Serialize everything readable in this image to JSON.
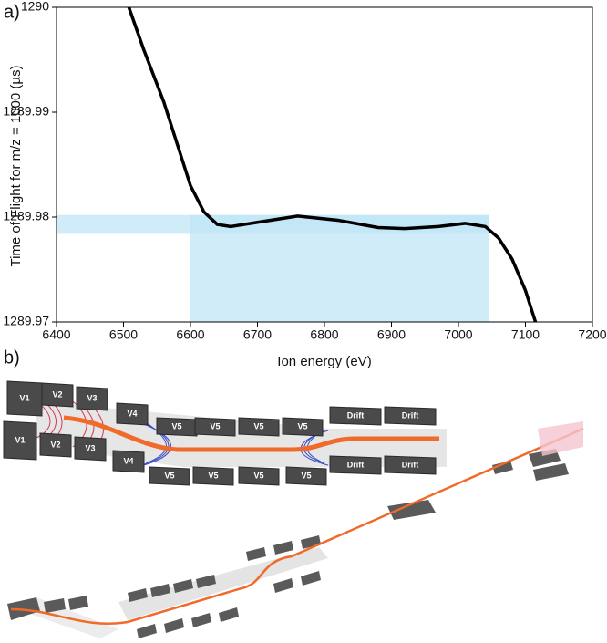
{
  "chart_data": {
    "type": "line",
    "panel_label": "a)",
    "x_label": "Ion energy (eV)",
    "y_label": "Time of Flight for m/z = 1000  (µs)",
    "x": [
      6508,
      6530,
      6560,
      6580,
      6600,
      6620,
      6640,
      6660,
      6700,
      6760,
      6820,
      6880,
      6920,
      6970,
      7010,
      7040,
      7060,
      7080,
      7100,
      7115
    ],
    "series": [
      {
        "color": "#000000",
        "values": [
          1290.0,
          1289.996,
          1289.991,
          1289.987,
          1289.983,
          1289.9805,
          1289.9793,
          1289.9791,
          1289.9795,
          1289.9801,
          1289.9797,
          1289.979,
          1289.9789,
          1289.9791,
          1289.9794,
          1289.9791,
          1289.978,
          1289.976,
          1289.973,
          1289.97
        ]
      }
    ],
    "shaded_regions": [
      {
        "xlim": [
          6600,
          7045
        ],
        "ylim": [
          1289.97,
          1289.9802
        ],
        "color": "#bfe6f5"
      },
      {
        "xlim": [
          6400,
          7045
        ],
        "ylim": [
          1289.9784,
          1289.9802
        ],
        "color": "#bfe6f5"
      }
    ],
    "xlim": [
      6400,
      7200
    ],
    "xticks": [
      6400,
      6500,
      6600,
      6700,
      6800,
      6900,
      7000,
      7100,
      7200
    ],
    "ylim": [
      1289.97,
      1290
    ],
    "yticks": [
      1289.97,
      1289.98,
      1289.99,
      1290
    ],
    "grid": false
  },
  "diagram": {
    "panel_label": "b)",
    "electrodes": [
      "V1",
      "V1",
      "V2",
      "V2",
      "V3",
      "V3",
      "V4",
      "V4",
      "V5",
      "V5",
      "V5",
      "V5",
      "V5",
      "V5",
      "V5",
      "V5",
      "Drift",
      "Drift",
      "Drift",
      "Drift"
    ]
  }
}
